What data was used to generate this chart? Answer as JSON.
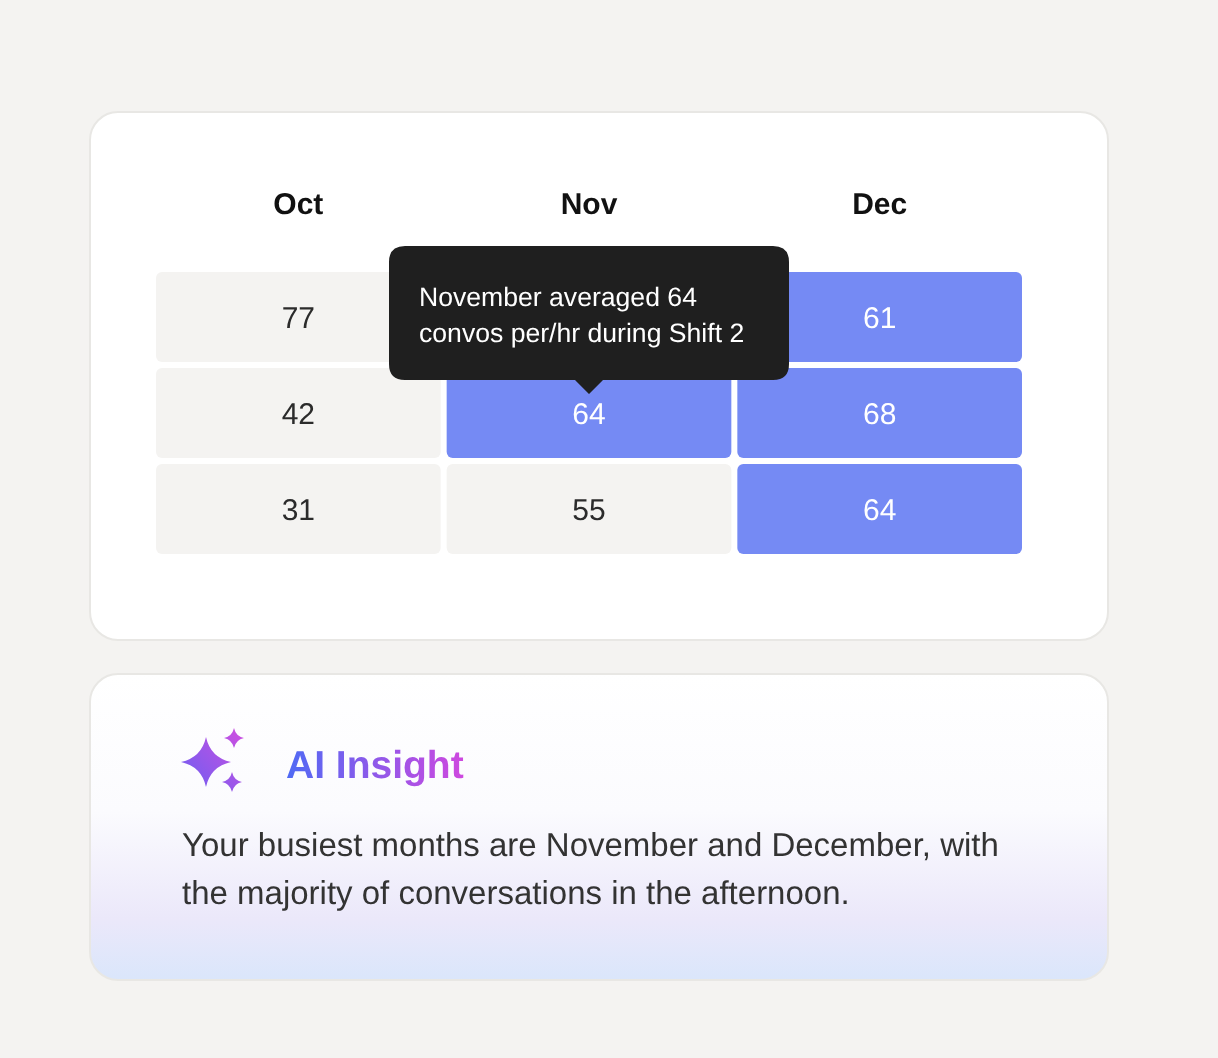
{
  "chart_data": [
    {
      "type": "heatmap",
      "categories": [
        "Oct",
        "Nov",
        "Dec"
      ],
      "y_categories": [
        null,
        null,
        null
      ],
      "cells": [
        [
          77,
          null,
          61
        ],
        [
          42,
          64,
          68
        ],
        [
          31,
          55,
          64
        ]
      ],
      "colors": [
        [
          "#f4f3f1",
          null,
          "#758af4"
        ],
        [
          "#f4f3f1",
          "#758af4",
          "#758af4"
        ],
        [
          "#f4f3f1",
          "#f4f3f1",
          "#758af4"
        ]
      ],
      "data_labels": true,
      "annotations": [
        "November averaged 64 convos per/hr during Shift 2"
      ]
    },
    {
      "type": "other",
      "title": "AI Insight",
      "annotations": [
        "Your busiest months are November and December, with the majority of conversations in the afternoon."
      ]
    }
  ]
}
